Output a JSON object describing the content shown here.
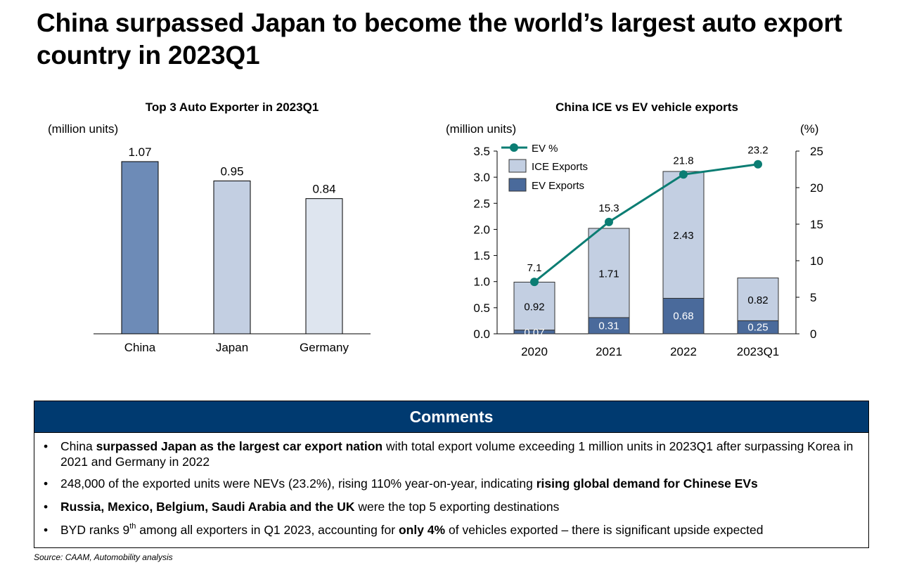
{
  "page": {
    "title": "China surpassed Japan to become the world’s largest auto export country in 2023Q1",
    "source": "Source: CAAM, Automobility analysis"
  },
  "colors": {
    "china_bar": "#6d8bb7",
    "japan_bar": "#c3cfe2",
    "germany_bar": "#dee5ef",
    "ice_exports": "#c3cfe2",
    "ev_exports": "#4a6a9b",
    "ev_pct_line": "#0b7d73",
    "comments_header": "#003a70"
  },
  "chart_data": [
    {
      "type": "bar",
      "title": "Top 3 Auto Exporter in 2023Q1",
      "unit_label": "(million units)",
      "categories": [
        "China",
        "Japan",
        "Germany"
      ],
      "values": [
        1.07,
        0.95,
        0.84
      ],
      "value_labels": [
        "1.07",
        "0.95",
        "0.84"
      ],
      "ylim": [
        0,
        1.2
      ]
    },
    {
      "type": "bar+line",
      "title": "China ICE vs EV vehicle exports",
      "left_unit_label": "(million units)",
      "right_unit_label": "(%)",
      "categories": [
        "2020",
        "2021",
        "2022",
        "2023Q1"
      ],
      "ylim": [
        0,
        3.5
      ],
      "y_ticks": [
        "0.0",
        "0.5",
        "1.0",
        "1.5",
        "2.0",
        "2.5",
        "3.0",
        "3.5"
      ],
      "y2lim": [
        0,
        25
      ],
      "y2_ticks": [
        "0",
        "5",
        "10",
        "15",
        "20",
        "25"
      ],
      "series": [
        {
          "name": "EV Exports",
          "kind": "stacked-bar",
          "values": [
            0.07,
            0.31,
            0.68,
            0.25
          ],
          "labels": [
            "0.07",
            "0.31",
            "0.68",
            "0.25"
          ]
        },
        {
          "name": "ICE Exports",
          "kind": "stacked-bar",
          "values": [
            0.92,
            1.71,
            2.43,
            0.82
          ],
          "labels": [
            "0.92",
            "1.71",
            "2.43",
            "0.82"
          ]
        },
        {
          "name": "EV %",
          "kind": "line",
          "axis": "right",
          "values": [
            7.1,
            15.3,
            21.8,
            23.2
          ],
          "labels": [
            "7.1",
            "15.3",
            "21.8",
            "23.2"
          ]
        }
      ],
      "legend": [
        "EV %",
        "ICE Exports",
        "EV Exports"
      ],
      "legend_position": "top-left"
    }
  ],
  "comments": {
    "header": "Comments",
    "items": [
      {
        "parts": [
          {
            "text": "China ",
            "bold": false
          },
          {
            "text": "surpassed Japan as the largest car export nation",
            "bold": true
          },
          {
            "text": " with total export volume exceeding 1 million units in 2023Q1 after surpassing Korea in 2021 and Germany in 2022",
            "bold": false
          }
        ]
      },
      {
        "parts": [
          {
            "text": "248,000 of the exported units were NEVs (23.2%), rising 110% year-on-year, indicating ",
            "bold": false
          },
          {
            "text": "rising global demand for Chinese EVs",
            "bold": true
          }
        ]
      },
      {
        "parts": [
          {
            "text": "Russia, Mexico,  Belgium, Saudi Arabia and the UK",
            "bold": true
          },
          {
            "text": " were the top 5 exporting destinations",
            "bold": false
          }
        ]
      },
      {
        "parts": [
          {
            "text": "BYD ranks 9",
            "bold": false
          },
          {
            "text": "th",
            "sup": true
          },
          {
            "text": " among all exporters in Q1 2023, accounting for ",
            "bold": false
          },
          {
            "text": "only 4%",
            "bold": true
          },
          {
            "text": " of vehicles exported – there is significant upside expected",
            "bold": false
          }
        ]
      }
    ]
  }
}
